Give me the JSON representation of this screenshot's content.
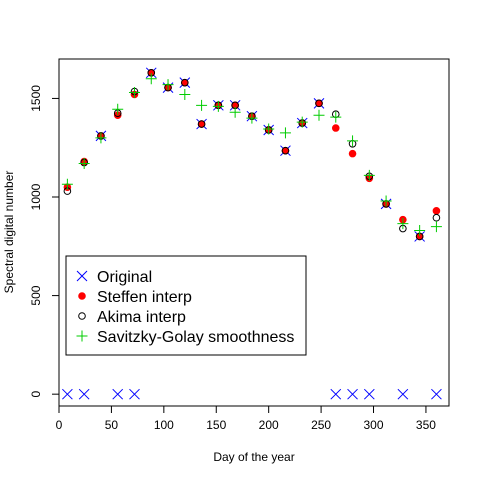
{
  "chart_data": {
    "type": "scatter",
    "title": "",
    "xlabel": "Day of the year",
    "ylabel": "Spectral digital number",
    "xlim": [
      0,
      372
    ],
    "ylim": [
      -60,
      1700
    ],
    "xticks": [
      0,
      50,
      100,
      150,
      200,
      250,
      300,
      350
    ],
    "yticks": [
      0,
      500,
      1000,
      1500
    ],
    "grid": false,
    "legend_position": "lower-left",
    "x": [
      8,
      24,
      40,
      56,
      72,
      88,
      104,
      120,
      136,
      152,
      168,
      184,
      200,
      216,
      232,
      248,
      264,
      280,
      296,
      312,
      328,
      344,
      360
    ],
    "series": [
      {
        "name": "Original",
        "marker": "cross",
        "color": "#0000ff",
        "values": [
          0,
          0,
          1310,
          0,
          0,
          1630,
          1555,
          1580,
          1370,
          1465,
          1465,
          1410,
          1340,
          1235,
          1375,
          1475,
          0,
          0,
          0,
          965,
          0,
          800,
          0
        ]
      },
      {
        "name": "Steffen interp",
        "marker": "filled-circle",
        "color": "#ff0000",
        "values": [
          1050,
          1180,
          1310,
          1415,
          1520,
          1630,
          1555,
          1580,
          1370,
          1465,
          1465,
          1410,
          1340,
          1235,
          1375,
          1475,
          1350,
          1220,
          1095,
          965,
          885,
          800,
          930
        ]
      },
      {
        "name": "Akima interp",
        "marker": "open-circle",
        "color": "#000000",
        "values": [
          1030,
          1175,
          1310,
          1425,
          1535,
          1630,
          1555,
          1580,
          1370,
          1465,
          1465,
          1410,
          1340,
          1235,
          1375,
          1475,
          1420,
          1270,
          1105,
          965,
          840,
          800,
          895
        ]
      },
      {
        "name": "Savitzky-Golay smoothness",
        "marker": "plus",
        "color": "#00cc00",
        "values": [
          1065,
          1170,
          1300,
          1445,
          1530,
          1600,
          1570,
          1520,
          1465,
          1460,
          1430,
          1400,
          1345,
          1325,
          1380,
          1415,
          1405,
          1285,
          1110,
          980,
          865,
          830,
          850
        ]
      }
    ]
  }
}
